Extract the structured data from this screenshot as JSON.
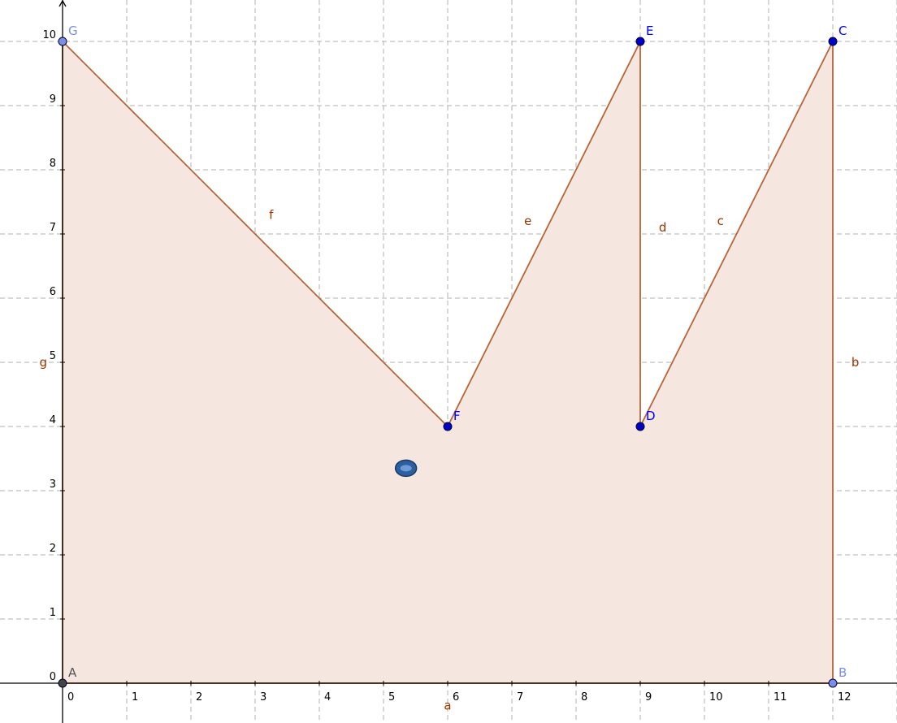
{
  "chart_data": {
    "type": "diagram",
    "x_range": [
      -1,
      13
    ],
    "y_range": [
      -0.5,
      10.5
    ],
    "grid": true,
    "x_ticks": [
      {
        "v": 0,
        "label": "0"
      },
      {
        "v": 1,
        "label": "1"
      },
      {
        "v": 2,
        "label": "2"
      },
      {
        "v": 3,
        "label": "3"
      },
      {
        "v": 4,
        "label": "4"
      },
      {
        "v": 5,
        "label": "5"
      },
      {
        "v": 6,
        "label": "6"
      },
      {
        "v": 7,
        "label": "7"
      },
      {
        "v": 8,
        "label": "8"
      },
      {
        "v": 9,
        "label": "9"
      },
      {
        "v": 10,
        "label": "10"
      },
      {
        "v": 11,
        "label": "11"
      },
      {
        "v": 12,
        "label": "12"
      }
    ],
    "y_ticks": [
      {
        "v": 0,
        "label": "0"
      },
      {
        "v": 1,
        "label": "1"
      },
      {
        "v": 2,
        "label": "2"
      },
      {
        "v": 3,
        "label": "3"
      },
      {
        "v": 4,
        "label": "4"
      },
      {
        "v": 5,
        "label": "5"
      },
      {
        "v": 6,
        "label": "6"
      },
      {
        "v": 7,
        "label": "7"
      },
      {
        "v": 8,
        "label": "8"
      },
      {
        "v": 9,
        "label": "9"
      },
      {
        "v": 10,
        "label": "10"
      }
    ],
    "points": [
      {
        "name": "A",
        "x": 0,
        "y": 0,
        "color": "#444444",
        "label_color": "#555555"
      },
      {
        "name": "B",
        "x": 12,
        "y": 0,
        "color": "#7b8fe6",
        "label_color": "#7b8fe6"
      },
      {
        "name": "C",
        "x": 12,
        "y": 10,
        "color": "#0000cc",
        "label_color": "#0000ff"
      },
      {
        "name": "D",
        "x": 9,
        "y": 4,
        "color": "#0000cc",
        "label_color": "#0000ff"
      },
      {
        "name": "E",
        "x": 9,
        "y": 10,
        "color": "#0000cc",
        "label_color": "#0000ff"
      },
      {
        "name": "F",
        "x": 6,
        "y": 4,
        "color": "#0000cc",
        "label_color": "#0000ff"
      },
      {
        "name": "G",
        "x": 0,
        "y": 10,
        "color": "#7b8fe6",
        "label_color": "#7b8fe6"
      }
    ],
    "segments": [
      {
        "name": "a",
        "from": "A",
        "to": "B",
        "label_at": [
          6,
          -0.35
        ]
      },
      {
        "name": "b",
        "from": "B",
        "to": "C",
        "label_at": [
          12.35,
          5
        ]
      },
      {
        "name": "c",
        "from": "C",
        "to": "D",
        "label_at": [
          10.25,
          7.2
        ]
      },
      {
        "name": "d",
        "from": "D",
        "to": "E",
        "label_at": [
          9.35,
          7.1
        ]
      },
      {
        "name": "e",
        "from": "E",
        "to": "F",
        "label_at": [
          7.25,
          7.2
        ]
      },
      {
        "name": "f",
        "from": "F",
        "to": "G",
        "label_at": [
          3.25,
          7.3
        ]
      },
      {
        "name": "g",
        "from": "G",
        "to": "A",
        "label_at": [
          -0.3,
          5
        ]
      }
    ],
    "polygon": [
      "A",
      "B",
      "C",
      "D",
      "E",
      "F",
      "G"
    ],
    "colors": {
      "fill": "#f5e6e0",
      "edge": "#b5653a",
      "grid": "#b0b0b0",
      "axis": "#000000",
      "cursor": "#2d5fa0"
    },
    "cursor": {
      "x": 5.35,
      "y": 3.35
    }
  }
}
